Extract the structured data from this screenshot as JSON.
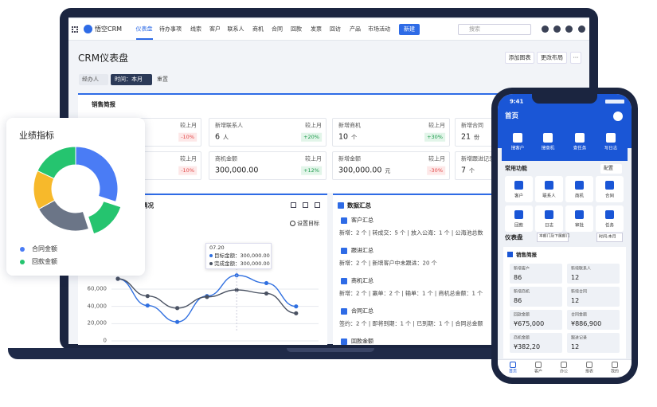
{
  "laptop": {
    "nav": {
      "brand": "悟空CRM",
      "items": [
        "仪表盘",
        "待办事项",
        "线索",
        "客户",
        "联系人",
        "商机",
        "合同",
        "回款",
        "发票",
        "回访",
        "产品",
        "市场活动"
      ],
      "new_button": "新建",
      "search": "搜索"
    },
    "header": {
      "title": "CRM仪表盘",
      "buttons": [
        "添加图表",
        "更改布局",
        "···"
      ]
    },
    "filters": {
      "owner": "经办人",
      "time": "时间：本月",
      "reset": "重置"
    },
    "sales_brief": {
      "title": "销售简报",
      "cards": [
        {
          "compare": "较上月",
          "change": "-10%"
        },
        {
          "label": "新增联系人",
          "compare": "较上月",
          "value": "6",
          "unit": "人",
          "change": "+20%"
        },
        {
          "label": "新增商机",
          "compare": "较上月",
          "value": "10",
          "unit": "个",
          "change": "+30%"
        },
        {
          "label": "新增合同",
          "value": "21",
          "unit": "份"
        },
        {
          "compare": "较上月",
          "change": "-10%"
        },
        {
          "label": "商机金额",
          "compare": "较上月",
          "value": "300,000.00",
          "change": "+12%"
        },
        {
          "label": "新增金额",
          "compare": "较上月",
          "value": "300,000.00",
          "unit": "元",
          "change": "-30%"
        },
        {
          "label": "新增跟进记录",
          "value": "7",
          "unit": "个"
        }
      ]
    },
    "target_chart": {
      "type": "line",
      "title": "目标完成情况",
      "settings": "设置目标",
      "ylim": [
        0,
        100000
      ],
      "yticks": [
        0,
        {
          "value": 20000,
          "label": "20,000"
        },
        {
          "value": 40000,
          "label": "40,000"
        },
        {
          "value": 60000,
          "label": "60,000"
        }
      ],
      "grid": true,
      "series": [
        {
          "color": "#2f6fe0",
          "values": [
            72000,
            41000,
            22000,
            52000,
            76000,
            67000,
            40000
          ]
        },
        {
          "color": "#4a5262",
          "values": [
            72000,
            52000,
            38000,
            51000,
            59000,
            55000,
            32000
          ]
        }
      ],
      "tooltip": {
        "date": "07.20",
        "rows": [
          "目标金额：300,000.00",
          "完成金额：300,000.00"
        ]
      }
    },
    "data_summary": {
      "title": "数据汇总",
      "sections": [
        {
          "title": "客户汇总",
          "detail": "新增：2 个 | 转成交：5 个 | 放入公海：1 个 | 公海池总数"
        },
        {
          "title": "跟进汇总",
          "detail": "新增：2 个 | 新增客户中未跟进：20 个"
        },
        {
          "title": "商机汇总",
          "detail": "新增：2 个 | 赢单：2 个 | 输单：1 个 | 商机总金额：1 个"
        },
        {
          "title": "合同汇总",
          "detail": "签约：2 个 | 即将到期：1 个 | 已到期：1 个 | 合同总金额"
        },
        {
          "title": "回款金额"
        }
      ]
    }
  },
  "performance_card": {
    "type": "pie",
    "title": "业绩指标",
    "legend": [
      {
        "name": "合同金额",
        "color": "#4a7cf5"
      },
      {
        "name": "回款金额",
        "color": "#25c46f"
      }
    ],
    "segments": [
      {
        "value": 30,
        "color": "#4a7cf5"
      },
      {
        "value": 15,
        "color": "#25c46f",
        "explode": true
      },
      {
        "value": 22,
        "color": "#6b7587"
      },
      {
        "value": 15,
        "color": "#f7b92b"
      },
      {
        "value": 18,
        "color": "#25c46f"
      }
    ]
  },
  "phone": {
    "time": "9:41",
    "title": "首页",
    "quick": [
      "搜客户",
      "搜商机",
      "查任务",
      "写日志"
    ],
    "functions_title": "常用功能",
    "config": "配置",
    "functions": [
      "客户",
      "联系人",
      "商机",
      "合同",
      "回款",
      "日志",
      "审批",
      "任务"
    ],
    "dashboard": "仪表盘",
    "department": "本部门及下属部门",
    "period": "时间:本月",
    "brief_title": "销售简报",
    "brief": [
      {
        "label": "新增客户",
        "value": "86"
      },
      {
        "label": "新增联系人",
        "value": "12"
      },
      {
        "label": "新增商机",
        "value": "86"
      },
      {
        "label": "新增合同",
        "value": "12"
      },
      {
        "label": "回款金额",
        "value": "¥675,000"
      },
      {
        "label": "合同金额",
        "value": "¥886,900"
      },
      {
        "label": "商机金额",
        "value": "¥382,20"
      },
      {
        "label": "跟进记录",
        "value": "12"
      }
    ],
    "tabs": [
      "首页",
      "客户",
      "办公",
      "报表",
      "我的"
    ]
  }
}
